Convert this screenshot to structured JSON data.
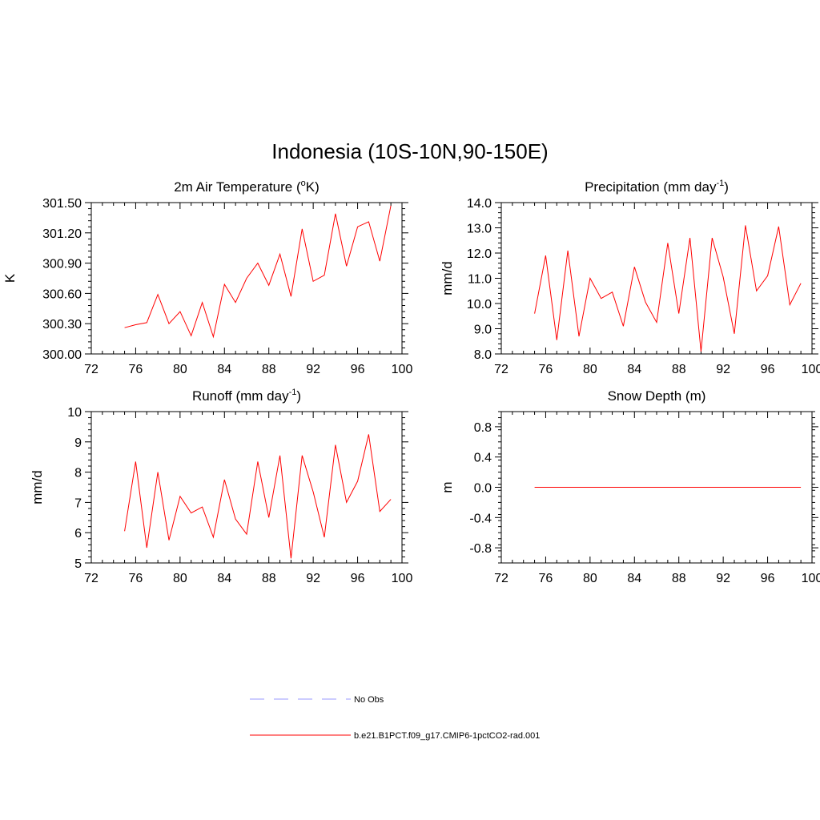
{
  "title": "Indonesia (10S-10N,90-150E)",
  "chart_data": [
    {
      "type": "line",
      "title": "2m Air Temperature (oK)",
      "title_parts": {
        "pre": "2m Air Temperature (",
        "sup": "o",
        "post": "K)"
      },
      "xlabel": "",
      "ylabel": "K",
      "xlim": [
        72,
        100
      ],
      "ylim": [
        300.0,
        301.5
      ],
      "xticks": [
        "72",
        "76",
        "80",
        "84",
        "88",
        "92",
        "96",
        "100"
      ],
      "xtick_values": [
        72,
        76,
        80,
        84,
        88,
        92,
        96,
        100
      ],
      "yticks": [
        "300.00",
        "300.30",
        "300.60",
        "300.90",
        "301.20",
        "301.50"
      ],
      "ytick_values": [
        300.0,
        300.3,
        300.6,
        300.9,
        301.2,
        301.5
      ],
      "grid": false,
      "series": [
        {
          "name": "b.e21.B1PCT.f09_g17.CMIP6-1pctCO2-rad.001",
          "color": "#ff0000",
          "x": [
            75,
            76,
            77,
            78,
            79,
            80,
            81,
            82,
            83,
            84,
            85,
            86,
            87,
            88,
            89,
            90,
            91,
            92,
            93,
            94,
            95,
            96,
            97,
            98,
            99
          ],
          "values": [
            300.26,
            300.29,
            300.31,
            300.59,
            300.3,
            300.42,
            300.18,
            300.51,
            300.17,
            300.69,
            300.51,
            300.75,
            300.9,
            300.68,
            300.99,
            300.57,
            301.24,
            300.72,
            300.78,
            301.39,
            300.87,
            301.26,
            301.31,
            300.92,
            301.47
          ]
        }
      ]
    },
    {
      "type": "line",
      "title": "Precipitation (mm day-1)",
      "title_parts": {
        "pre": "Precipitation (mm day",
        "sup": "-1",
        "post": ")"
      },
      "xlabel": "",
      "ylabel": "mm/d",
      "xlim": [
        72,
        100
      ],
      "ylim": [
        8.0,
        14.0
      ],
      "xticks": [
        "72",
        "76",
        "80",
        "84",
        "88",
        "92",
        "96",
        "100"
      ],
      "xtick_values": [
        72,
        76,
        80,
        84,
        88,
        92,
        96,
        100
      ],
      "yticks": [
        "8.0",
        "9.0",
        "10.0",
        "11.0",
        "12.0",
        "13.0",
        "14.0"
      ],
      "ytick_values": [
        8,
        9,
        10,
        11,
        12,
        13,
        14
      ],
      "grid": false,
      "series": [
        {
          "name": "b.e21.B1PCT.f09_g17.CMIP6-1pctCO2-rad.001",
          "color": "#ff0000",
          "x": [
            75,
            76,
            77,
            78,
            79,
            80,
            81,
            82,
            83,
            84,
            85,
            86,
            87,
            88,
            89,
            90,
            91,
            92,
            93,
            94,
            95,
            96,
            97,
            98,
            99
          ],
          "values": [
            9.6,
            11.9,
            8.55,
            12.1,
            8.7,
            11.0,
            10.2,
            10.45,
            9.1,
            11.45,
            10.05,
            9.25,
            12.4,
            9.6,
            12.6,
            8.1,
            12.6,
            11.05,
            8.8,
            13.1,
            10.5,
            11.1,
            13.05,
            9.95,
            10.8
          ]
        }
      ]
    },
    {
      "type": "line",
      "title": "Runoff (mm day-1)",
      "title_parts": {
        "pre": "Runoff (mm day",
        "sup": "-1",
        "post": ")"
      },
      "xlabel": "",
      "ylabel": "mm/d",
      "xlim": [
        72,
        100
      ],
      "ylim": [
        5,
        10
      ],
      "xticks": [
        "72",
        "76",
        "80",
        "84",
        "88",
        "92",
        "96",
        "100"
      ],
      "xtick_values": [
        72,
        76,
        80,
        84,
        88,
        92,
        96,
        100
      ],
      "yticks": [
        "5",
        "6",
        "7",
        "8",
        "9",
        "10"
      ],
      "ytick_values": [
        5,
        6,
        7,
        8,
        9,
        10
      ],
      "grid": false,
      "series": [
        {
          "name": "b.e21.B1PCT.f09_g17.CMIP6-1pctCO2-rad.001",
          "color": "#ff0000",
          "x": [
            75,
            76,
            77,
            78,
            79,
            80,
            81,
            82,
            83,
            84,
            85,
            86,
            87,
            88,
            89,
            90,
            91,
            92,
            93,
            94,
            95,
            96,
            97,
            98,
            99
          ],
          "values": [
            6.05,
            8.35,
            5.5,
            8.0,
            5.75,
            7.2,
            6.65,
            6.85,
            5.85,
            7.75,
            6.45,
            5.95,
            8.35,
            6.5,
            8.55,
            5.15,
            8.55,
            7.35,
            5.85,
            8.9,
            7.0,
            7.7,
            9.25,
            6.7,
            7.1
          ]
        }
      ]
    },
    {
      "type": "line",
      "title": "Snow Depth (m)",
      "title_parts": {
        "pre": "Snow Depth (m)",
        "sup": "",
        "post": ""
      },
      "xlabel": "",
      "ylabel": "m",
      "xlim": [
        72,
        100
      ],
      "ylim": [
        -1.0,
        1.0
      ],
      "xticks": [
        "72",
        "76",
        "80",
        "84",
        "88",
        "92",
        "96",
        "100"
      ],
      "xtick_values": [
        72,
        76,
        80,
        84,
        88,
        92,
        96,
        100
      ],
      "yticks": [
        "-0.8",
        "-0.4",
        "0.0",
        "0.4",
        "0.8"
      ],
      "ytick_values": [
        -0.8,
        -0.4,
        0.0,
        0.4,
        0.8
      ],
      "grid": false,
      "series": [
        {
          "name": "b.e21.B1PCT.f09_g17.CMIP6-1pctCO2-rad.001",
          "color": "#ff0000",
          "x": [
            75,
            76,
            77,
            78,
            79,
            80,
            81,
            82,
            83,
            84,
            85,
            86,
            87,
            88,
            89,
            90,
            91,
            92,
            93,
            94,
            95,
            96,
            97,
            98,
            99
          ],
          "values": [
            0,
            0,
            0,
            0,
            0,
            0,
            0,
            0,
            0,
            0,
            0,
            0,
            0,
            0,
            0,
            0,
            0,
            0,
            0,
            0,
            0,
            0,
            0,
            0,
            0
          ]
        }
      ]
    }
  ],
  "legend": {
    "placement": "bottom-center",
    "items": [
      {
        "label": "No Obs",
        "color": "#9999ff",
        "style": "dashed"
      },
      {
        "label": "b.e21.B1PCT.f09_g17.CMIP6-1pctCO2-rad.001",
        "color": "#ff0000",
        "style": "solid"
      }
    ]
  }
}
